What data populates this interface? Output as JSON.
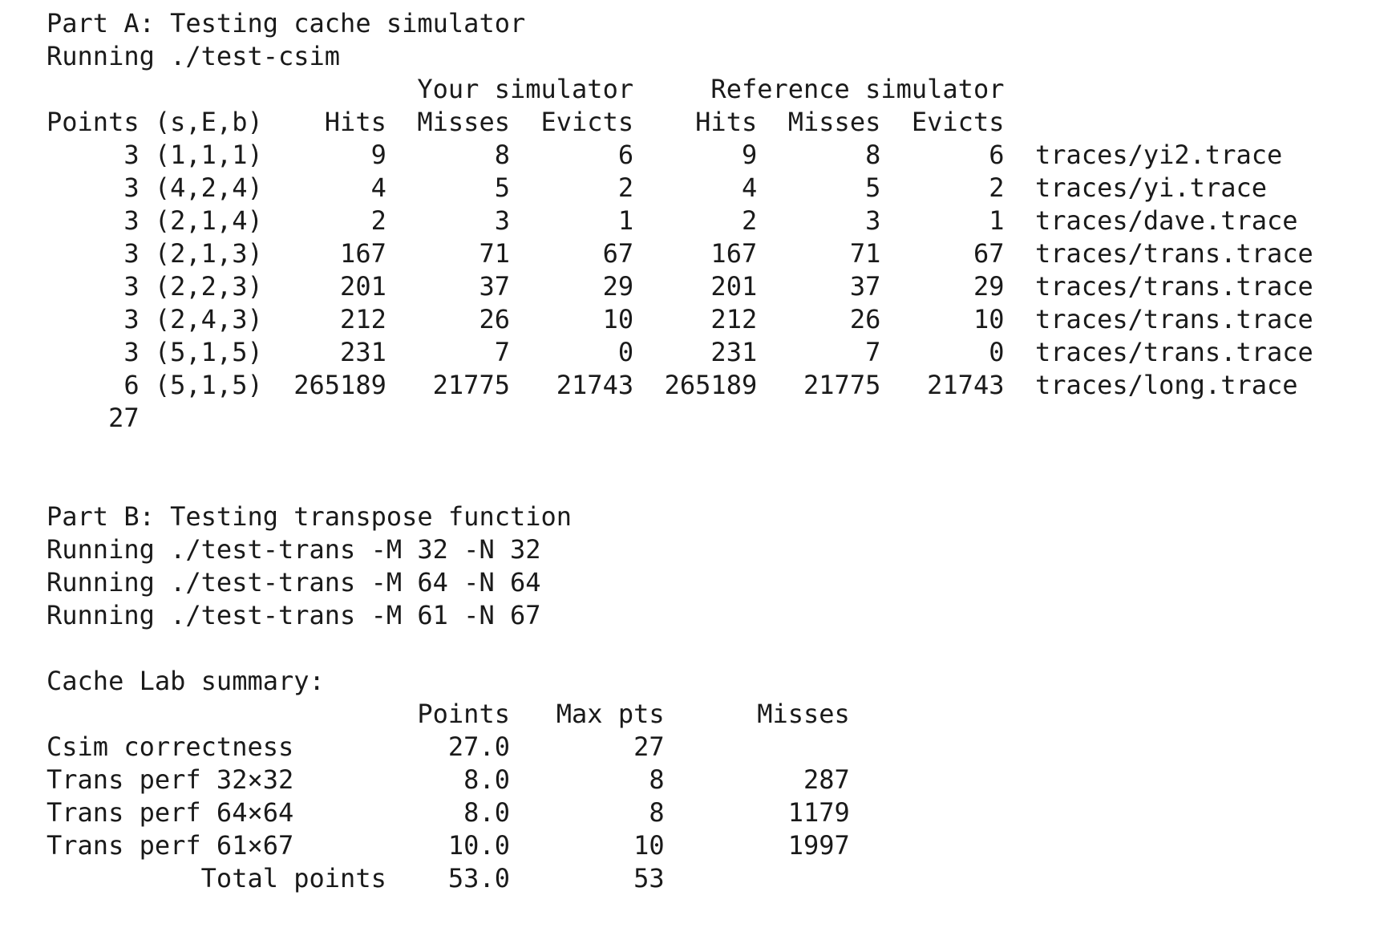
{
  "terminal": {
    "lines": [
      "Part A: Testing cache simulator",
      "Running ./test-csim",
      "                        Your simulator     Reference simulator",
      "Points (s,E,b)    Hits  Misses  Evicts    Hits  Misses  Evicts",
      "     3 (1,1,1)       9       8       6       9       8       6  traces/yi2.trace",
      "     3 (4,2,4)       4       5       2       4       5       2  traces/yi.trace",
      "     3 (2,1,4)       2       3       1       2       3       1  traces/dave.trace",
      "     3 (2,1,3)     167      71      67     167      71      67  traces/trans.trace",
      "     3 (2,2,3)     201      37      29     201      37      29  traces/trans.trace",
      "     3 (2,4,3)     212      26      10     212      26      10  traces/trans.trace",
      "     3 (5,1,5)     231       7       0     231       7       0  traces/trans.trace",
      "     6 (5,1,5)  265189   21775   21743  265189   21775   21743  traces/long.trace",
      "    27",
      "",
      "",
      "Part B: Testing transpose function",
      "Running ./test-trans -M 32 -N 32",
      "Running ./test-trans -M 64 -N 64",
      "Running ./test-trans -M 61 -N 67",
      "",
      "Cache Lab summary:",
      "                        Points   Max pts      Misses",
      "Csim correctness          27.0        27",
      "Trans perf 32x32           8.0         8         287",
      "Trans perf 64x64           8.0         8        1179",
      "Trans perf 61x67          10.0        10        1997",
      "          Total points    53.0        53"
    ]
  }
}
